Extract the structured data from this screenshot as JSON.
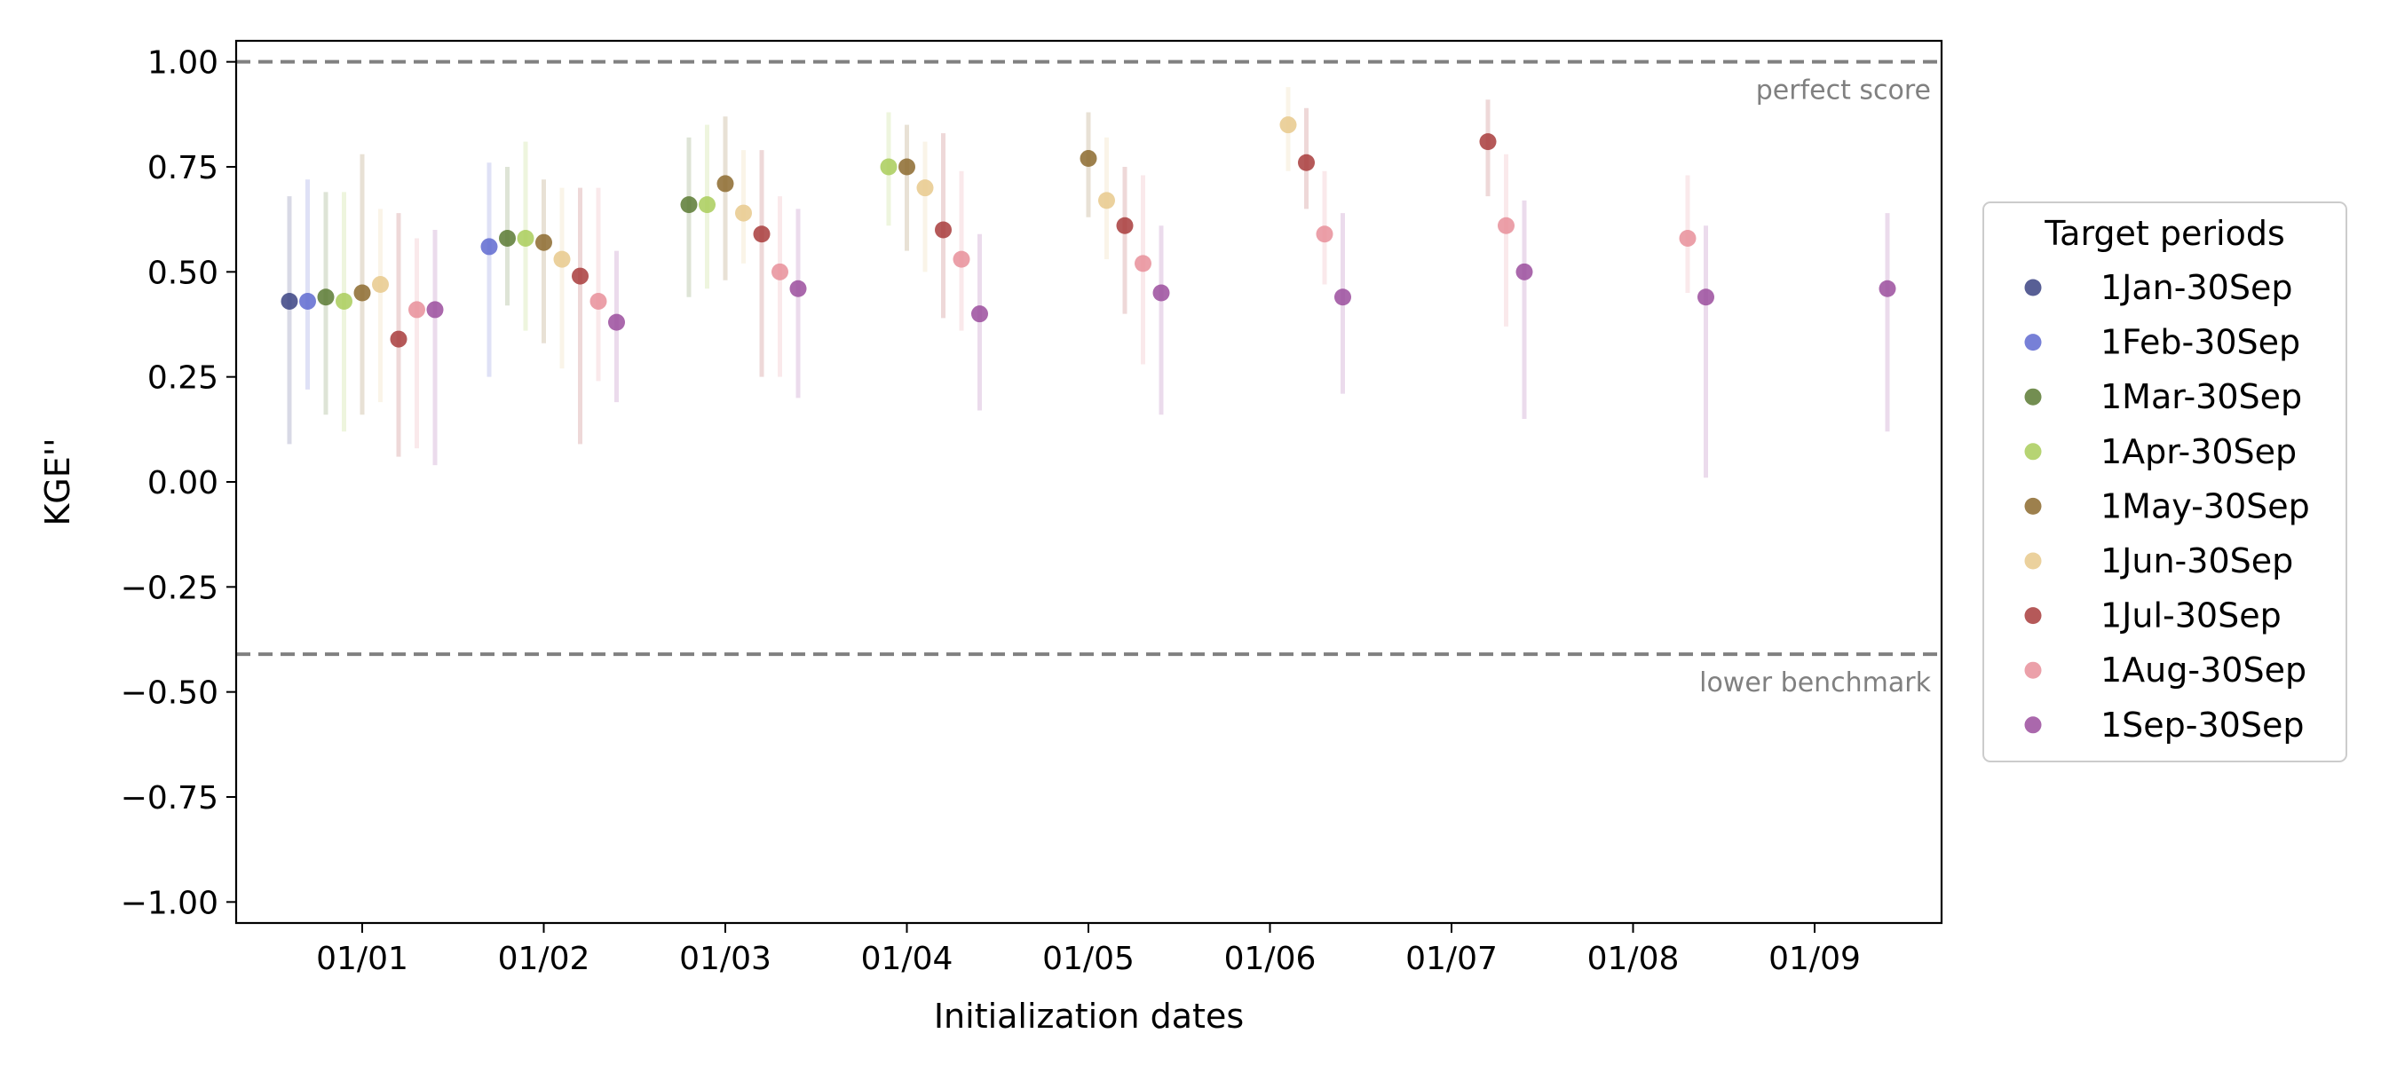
{
  "chart_data": {
    "type": "scatter",
    "title": "",
    "xlabel": "Initialization dates",
    "ylabel": "KGE''",
    "ylim": [
      -1.05,
      1.05
    ],
    "y_ticks": [
      "1.00",
      "0.75",
      "0.50",
      "0.25",
      "0.00",
      "−0.25",
      "−0.50",
      "−0.75",
      "−1.00"
    ],
    "y_tick_values": [
      1.0,
      0.75,
      0.5,
      0.25,
      0.0,
      -0.25,
      -0.5,
      -0.75,
      -1.0
    ],
    "x_categories": [
      "01/01",
      "01/02",
      "01/03",
      "01/04",
      "01/05",
      "01/06",
      "01/07",
      "01/08",
      "01/09"
    ],
    "grid": false,
    "reference_lines": [
      {
        "y": 1.0,
        "label": "perfect score"
      },
      {
        "y": -0.41,
        "label": "lower benchmark"
      }
    ],
    "legend": {
      "title": "Target periods",
      "placement": "outside-right"
    },
    "series": [
      {
        "name": "1Jan-30Sep",
        "color": "#3b4383",
        "points": [
          {
            "init": "01/01",
            "y": 0.43,
            "lo": 0.09,
            "hi": 0.68
          }
        ]
      },
      {
        "name": "1Feb-30Sep",
        "color": "#5f6ad0",
        "points": [
          {
            "init": "01/01",
            "y": 0.43,
            "lo": 0.22,
            "hi": 0.72
          },
          {
            "init": "01/02",
            "y": 0.56,
            "lo": 0.25,
            "hi": 0.76
          }
        ]
      },
      {
        "name": "1Mar-30Sep",
        "color": "#5a7a32",
        "points": [
          {
            "init": "01/01",
            "y": 0.44,
            "lo": 0.16,
            "hi": 0.69
          },
          {
            "init": "01/02",
            "y": 0.58,
            "lo": 0.42,
            "hi": 0.75
          },
          {
            "init": "01/03",
            "y": 0.66,
            "lo": 0.44,
            "hi": 0.82
          }
        ]
      },
      {
        "name": "1Apr-30Sep",
        "color": "#a9cc5a",
        "points": [
          {
            "init": "01/01",
            "y": 0.43,
            "lo": 0.12,
            "hi": 0.69
          },
          {
            "init": "01/02",
            "y": 0.58,
            "lo": 0.36,
            "hi": 0.81
          },
          {
            "init": "01/03",
            "y": 0.66,
            "lo": 0.46,
            "hi": 0.85
          },
          {
            "init": "01/04",
            "y": 0.75,
            "lo": 0.61,
            "hi": 0.88
          }
        ]
      },
      {
        "name": "1May-30Sep",
        "color": "#8c6a2e",
        "points": [
          {
            "init": "01/01",
            "y": 0.45,
            "lo": 0.16,
            "hi": 0.78
          },
          {
            "init": "01/02",
            "y": 0.57,
            "lo": 0.33,
            "hi": 0.72
          },
          {
            "init": "01/03",
            "y": 0.71,
            "lo": 0.48,
            "hi": 0.87
          },
          {
            "init": "01/04",
            "y": 0.75,
            "lo": 0.55,
            "hi": 0.85
          },
          {
            "init": "01/05",
            "y": 0.77,
            "lo": 0.63,
            "hi": 0.88
          }
        ]
      },
      {
        "name": "1Jun-30Sep",
        "color": "#e8c98c",
        "points": [
          {
            "init": "01/01",
            "y": 0.47,
            "lo": 0.19,
            "hi": 0.65
          },
          {
            "init": "01/02",
            "y": 0.53,
            "lo": 0.27,
            "hi": 0.7
          },
          {
            "init": "01/03",
            "y": 0.64,
            "lo": 0.52,
            "hi": 0.79
          },
          {
            "init": "01/04",
            "y": 0.7,
            "lo": 0.5,
            "hi": 0.81
          },
          {
            "init": "01/05",
            "y": 0.67,
            "lo": 0.53,
            "hi": 0.82
          },
          {
            "init": "01/06",
            "y": 0.85,
            "lo": 0.74,
            "hi": 0.94
          }
        ]
      },
      {
        "name": "1Jul-30Sep",
        "color": "#a83c3c",
        "points": [
          {
            "init": "01/01",
            "y": 0.34,
            "lo": 0.06,
            "hi": 0.64
          },
          {
            "init": "01/02",
            "y": 0.49,
            "lo": 0.09,
            "hi": 0.7
          },
          {
            "init": "01/03",
            "y": 0.59,
            "lo": 0.25,
            "hi": 0.79
          },
          {
            "init": "01/04",
            "y": 0.6,
            "lo": 0.39,
            "hi": 0.83
          },
          {
            "init": "01/05",
            "y": 0.61,
            "lo": 0.4,
            "hi": 0.75
          },
          {
            "init": "01/06",
            "y": 0.76,
            "lo": 0.65,
            "hi": 0.89
          },
          {
            "init": "01/07",
            "y": 0.81,
            "lo": 0.68,
            "hi": 0.91
          }
        ]
      },
      {
        "name": "1Aug-30Sep",
        "color": "#e88f9a",
        "points": [
          {
            "init": "01/01",
            "y": 0.41,
            "lo": 0.08,
            "hi": 0.58
          },
          {
            "init": "01/02",
            "y": 0.43,
            "lo": 0.24,
            "hi": 0.7
          },
          {
            "init": "01/03",
            "y": 0.5,
            "lo": 0.25,
            "hi": 0.68
          },
          {
            "init": "01/04",
            "y": 0.53,
            "lo": 0.36,
            "hi": 0.74
          },
          {
            "init": "01/05",
            "y": 0.52,
            "lo": 0.28,
            "hi": 0.73
          },
          {
            "init": "01/06",
            "y": 0.59,
            "lo": 0.47,
            "hi": 0.74
          },
          {
            "init": "01/07",
            "y": 0.61,
            "lo": 0.37,
            "hi": 0.78
          },
          {
            "init": "01/08",
            "y": 0.58,
            "lo": 0.45,
            "hi": 0.73
          }
        ]
      },
      {
        "name": "1Sep-30Sep",
        "color": "#9b4d9e",
        "points": [
          {
            "init": "01/01",
            "y": 0.41,
            "lo": 0.04,
            "hi": 0.6
          },
          {
            "init": "01/02",
            "y": 0.38,
            "lo": 0.19,
            "hi": 0.55
          },
          {
            "init": "01/03",
            "y": 0.46,
            "lo": 0.2,
            "hi": 0.65
          },
          {
            "init": "01/04",
            "y": 0.4,
            "lo": 0.17,
            "hi": 0.59
          },
          {
            "init": "01/05",
            "y": 0.45,
            "lo": 0.16,
            "hi": 0.61
          },
          {
            "init": "01/06",
            "y": 0.44,
            "lo": 0.21,
            "hi": 0.64
          },
          {
            "init": "01/07",
            "y": 0.5,
            "lo": 0.15,
            "hi": 0.67
          },
          {
            "init": "01/08",
            "y": 0.44,
            "lo": 0.01,
            "hi": 0.61
          },
          {
            "init": "01/09",
            "y": 0.46,
            "lo": 0.12,
            "hi": 0.64
          }
        ]
      }
    ]
  }
}
